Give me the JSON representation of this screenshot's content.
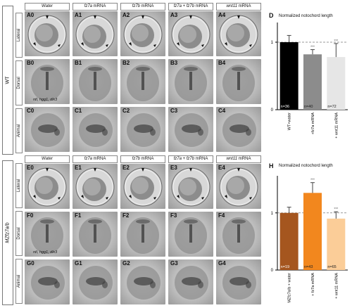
{
  "columns": [
    {
      "pre": "",
      "em1": "Water",
      "mid": "",
      "em2": "",
      "post": ""
    },
    {
      "pre": "",
      "em1": "fz7a",
      "mid": " mRNA",
      "em2": "",
      "post": ""
    },
    {
      "pre": "",
      "em1": "fz7b",
      "mid": " mRNA",
      "em2": "",
      "post": ""
    },
    {
      "pre": "",
      "em1": "fz7a",
      "mid": " + ",
      "em2": "fz7b",
      "post": " mRNA"
    },
    {
      "pre": "",
      "em1": "wnt11",
      "mid": " mRNA",
      "em2": "",
      "post": ""
    }
  ],
  "genotypes": [
    "WT",
    "MZfz7a/b"
  ],
  "row_labels": [
    "Lateral",
    "Dorsal",
    "Animal",
    "Lateral",
    "Dorsal",
    "Animal"
  ],
  "panel_labels": [
    [
      "A0",
      "A1",
      "A2",
      "A3",
      "A4"
    ],
    [
      "B0",
      "B1",
      "B2",
      "B3",
      "B4"
    ],
    [
      "C0",
      "C1",
      "C2",
      "C3",
      "C4"
    ],
    [
      "E0",
      "E1",
      "E2",
      "E3",
      "E4"
    ],
    [
      "F0",
      "F1",
      "F2",
      "F3",
      "F4"
    ],
    [
      "G0",
      "G1",
      "G2",
      "G3",
      "G4"
    ]
  ],
  "probe_label": "ntl, hgg1, dlx3",
  "chart_data": [
    {
      "type": "bar",
      "panel_label": "D",
      "title": "Normalized notochord length",
      "categories": [
        "WT+water",
        "+fz7a mRNA",
        "+ wnt11 mRNA"
      ],
      "values": [
        1.0,
        0.82,
        0.78
      ],
      "errors": [
        0.1,
        0.07,
        0.2
      ],
      "n_labels": [
        "n=36",
        "n=40",
        "n=72"
      ],
      "significance": [
        "",
        "***",
        "***"
      ],
      "colors": [
        "#000000",
        "#8c8c8c",
        "#e6e6e6"
      ],
      "yticks": [
        0,
        1
      ],
      "ylim": [
        0,
        1.25
      ],
      "reference_line": 1.0
    },
    {
      "type": "bar",
      "panel_label": "H",
      "title": "Normalized notochord length",
      "categories": [
        "MZfz7a/b + water",
        "+ fz7a mRNA",
        "+ wnt11 mRNA"
      ],
      "values": [
        1.0,
        1.35,
        0.9
      ],
      "errors": [
        0.1,
        0.18,
        0.12
      ],
      "n_labels": [
        "n=19",
        "n=43",
        "n=65"
      ],
      "significance": [
        "",
        "***",
        "***"
      ],
      "colors": [
        "#a5561f",
        "#f2871e",
        "#fbcd98"
      ],
      "yticks": [
        0,
        1
      ],
      "ylim": [
        0,
        1.6
      ],
      "reference_line": 1.0
    }
  ]
}
